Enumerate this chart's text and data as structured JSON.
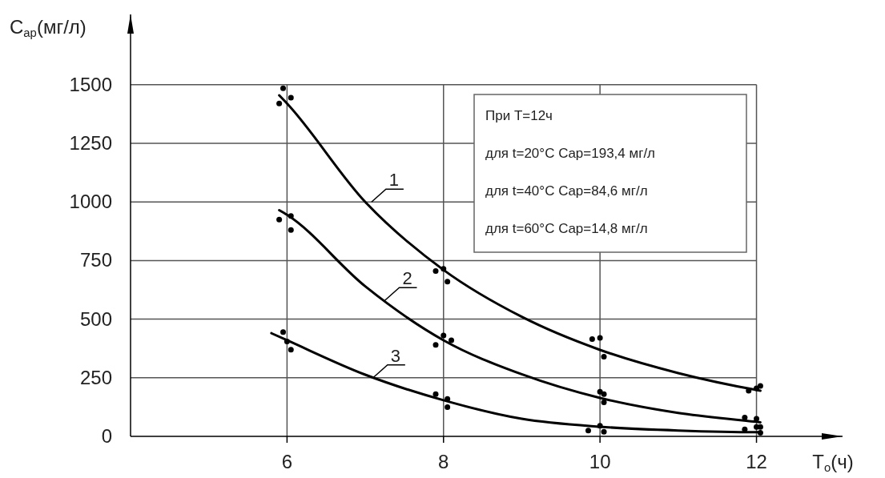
{
  "chart_data": {
    "type": "line",
    "xlabel": "T$_{о}$(ч)",
    "ylabel": "C$_{ар}$(мг/л)",
    "xlim": [
      4,
      13.1
    ],
    "ylim": [
      0,
      1800
    ],
    "xticks": [
      6,
      8,
      10,
      12
    ],
    "yticks": [
      0,
      250,
      500,
      750,
      1000,
      1250,
      1500
    ],
    "grid": true,
    "series": [
      {
        "color": "#000000",
        "marker": "none",
        "x": [
          5.9,
          6,
          7,
          8,
          9,
          10,
          11,
          12,
          12.05
        ],
        "values": [
          1455,
          1420,
          1000,
          710,
          510,
          369,
          270,
          198,
          195
        ]
      },
      {
        "color": "#000000",
        "marker": "none",
        "x": [
          5.9,
          6,
          7,
          8,
          9,
          10,
          11,
          12,
          12.05
        ],
        "values": [
          965,
          945,
          640,
          410,
          265,
          164,
          100,
          62,
          60
        ]
      },
      {
        "color": "#000000",
        "marker": "none",
        "x": [
          5.8,
          6,
          7,
          8,
          9,
          10,
          11,
          12,
          12.05
        ],
        "values": [
          440,
          410,
          263,
          154,
          75,
          41,
          25,
          18,
          18
        ]
      },
      {
        "type": "scatter",
        "color": "#000000",
        "marker": "circle",
        "x": [
          5.95,
          6.05,
          5.9,
          7.9,
          8.0,
          8.05,
          9.9,
          10.0,
          10.05,
          11.9,
          12.0,
          12.05
        ],
        "values": [
          1485,
          1445,
          1420,
          705,
          715,
          660,
          415,
          420,
          340,
          195,
          205,
          215
        ]
      },
      {
        "type": "scatter",
        "color": "#000000",
        "marker": "circle",
        "x": [
          5.9,
          6.05,
          6.05,
          7.9,
          8.0,
          8.1,
          10.0,
          10.05,
          10.05,
          11.85,
          12.0,
          12.05
        ],
        "values": [
          925,
          940,
          880,
          390,
          430,
          410,
          190,
          180,
          145,
          80,
          75,
          40
        ]
      },
      {
        "type": "scatter",
        "color": "#000000",
        "marker": "circle",
        "x": [
          5.95,
          6.0,
          6.05,
          7.9,
          8.05,
          8.05,
          9.85,
          10.0,
          10.05,
          11.85,
          12.0,
          12.05
        ],
        "values": [
          445,
          405,
          370,
          180,
          160,
          125,
          25,
          45,
          20,
          30,
          40,
          15
        ]
      }
    ],
    "annotations": [
      {
        "text": "1",
        "x": 7.08,
        "y": 1000
      },
      {
        "text": "2",
        "x": 7.25,
        "y": 580
      },
      {
        "text": "3",
        "x": 7.1,
        "y": 250
      },
      "При T=12ч",
      "для t=20°C  Cap=193,4 мг/л",
      "для t=40°C  Cap=84,6 мг/л",
      "для t=60°C  Cap=14,8 мг/л"
    ]
  }
}
